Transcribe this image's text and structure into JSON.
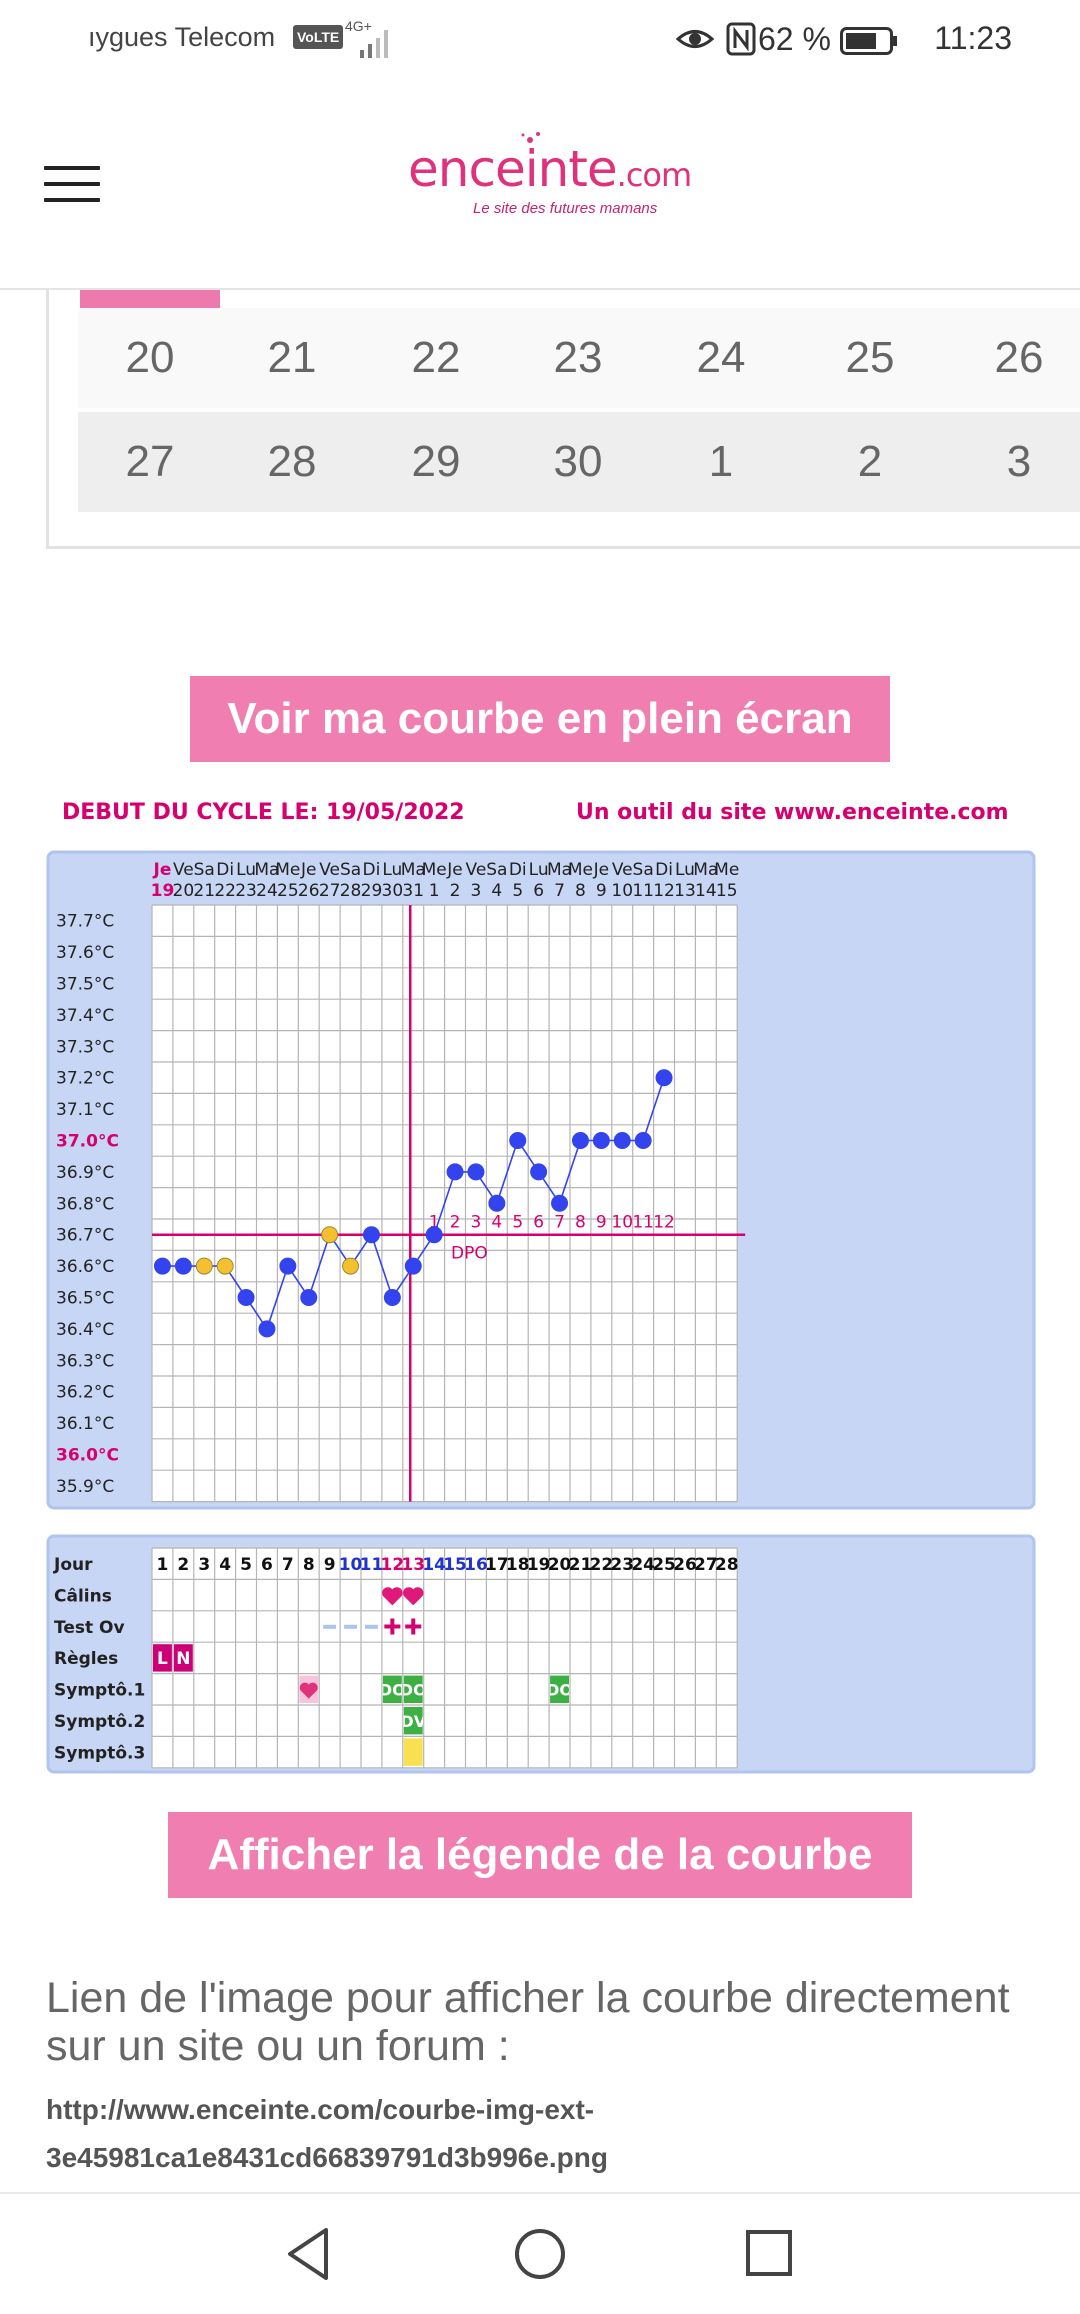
{
  "status_bar": {
    "carrier": "ıygues Telecom",
    "volte": "VoLTE",
    "network": "4G+",
    "battery": "62 %",
    "time": "11:23",
    "icons": [
      "volte-icon",
      "signal-icon",
      "eye-icon",
      "nfc-icon",
      "battery-icon"
    ]
  },
  "header": {
    "logo_word": "enceinte",
    "logo_suffix": ".com",
    "logo_tagline": "Le site des futures mamans",
    "brand_color": "#e0327a"
  },
  "calendar": {
    "rows": [
      [
        "20",
        "21",
        "22",
        "23",
        "24",
        "25",
        "26"
      ],
      [
        "27",
        "28",
        "29",
        "30",
        "1",
        "2",
        "3"
      ]
    ]
  },
  "buttons": {
    "fullscreen": "Voir ma courbe en plein écran",
    "legend": "Afficher la légende de la courbe"
  },
  "chart_data": {
    "type": "line",
    "header_left": "DEBUT DU CYCLE LE: 19/05/2022",
    "header_right": "Un outil du site www.enceinte.com",
    "day_names": [
      "Je",
      "Ve",
      "Sa",
      "Di",
      "Lu",
      "Ma",
      "Me",
      "Je",
      "Ve",
      "Sa",
      "Di",
      "Lu",
      "Ma",
      "Me",
      "Je",
      "Ve",
      "Sa",
      "Di",
      "Lu",
      "Ma",
      "Me",
      "Je",
      "Ve",
      "Sa",
      "Di",
      "Lu",
      "Ma",
      "Me"
    ],
    "dates": [
      "19",
      "20",
      "21",
      "22",
      "23",
      "24",
      "25",
      "26",
      "27",
      "28",
      "29",
      "30",
      "31",
      "1",
      "2",
      "3",
      "4",
      "5",
      "6",
      "7",
      "8",
      "9",
      "10",
      "11",
      "12",
      "13",
      "14",
      "15"
    ],
    "y_ticks": [
      "37.7°C",
      "37.6°C",
      "37.5°C",
      "37.4°C",
      "37.3°C",
      "37.2°C",
      "37.1°C",
      "37.0°C",
      "36.9°C",
      "36.8°C",
      "36.7°C",
      "36.6°C",
      "36.5°C",
      "36.4°C",
      "36.3°C",
      "36.2°C",
      "36.1°C",
      "36.0°C",
      "35.9°C"
    ],
    "highlight_ticks": [
      "37.0°C",
      "36.0°C"
    ],
    "ylim": [
      35.9,
      37.7
    ],
    "temperatures": [
      36.6,
      36.6,
      36.6,
      36.6,
      36.5,
      36.4,
      36.6,
      36.5,
      36.7,
      36.6,
      36.7,
      36.5,
      36.6,
      36.7,
      36.9,
      36.9,
      36.8,
      37.0,
      36.9,
      36.8,
      37.0,
      37.0,
      37.0,
      37.0,
      37.2
    ],
    "excluded_points": [
      3,
      4,
      9,
      10
    ],
    "coverline": 36.7,
    "ovulation_day": 13,
    "dpo_numbers": [
      "1",
      "2",
      "3",
      "4",
      "5",
      "6",
      "7",
      "8",
      "9",
      "10",
      "11",
      "12"
    ],
    "dpo_label": "DPO",
    "series_color": "#3344ee",
    "line_color": "#d6006e",
    "excluded_color": "#f5c030"
  },
  "table_data": {
    "row_labels": [
      "Jour",
      "Câlins",
      "Test Ov",
      "Règles",
      "Symptô.1",
      "Symptô.2",
      "Symptô.3"
    ],
    "days": [
      "1",
      "2",
      "3",
      "4",
      "5",
      "6",
      "7",
      "8",
      "9",
      "10",
      "11",
      "12",
      "13",
      "14",
      "15",
      "16",
      "17",
      "18",
      "19",
      "20",
      "21",
      "22",
      "23",
      "24",
      "25",
      "26",
      "27",
      "28"
    ],
    "blue_days": [
      10,
      11,
      14,
      15,
      16
    ],
    "pink_days": [
      12,
      13
    ],
    "calins_days": [
      12,
      13
    ],
    "test_negative_days": [
      9,
      10,
      11
    ],
    "test_positive_days": [
      12,
      13
    ],
    "regles": [
      {
        "day": 1,
        "code": "L"
      },
      {
        "day": 2,
        "code": "N"
      }
    ],
    "sympto1": [
      {
        "day": 8,
        "code": "heart-plus"
      },
      {
        "day": 12,
        "code": "DO"
      },
      {
        "day": 13,
        "code": "DO"
      },
      {
        "day": 20,
        "code": "DO"
      }
    ],
    "sympto2": [
      {
        "day": 13,
        "code": "DV"
      }
    ],
    "sympto3": [
      {
        "day": 13,
        "code": "yellow"
      }
    ]
  },
  "link_section": {
    "title": "Lien de l'image pour afficher la courbe directement sur un site ou un forum :",
    "url_line1": "http://www.enceinte.com/courbe-img-ext-",
    "url_line2": "3e45981ca1e8431cd66839791d3b996e.png"
  },
  "nav_bar": {
    "icons": [
      "back-icon",
      "home-icon",
      "recents-icon"
    ]
  }
}
